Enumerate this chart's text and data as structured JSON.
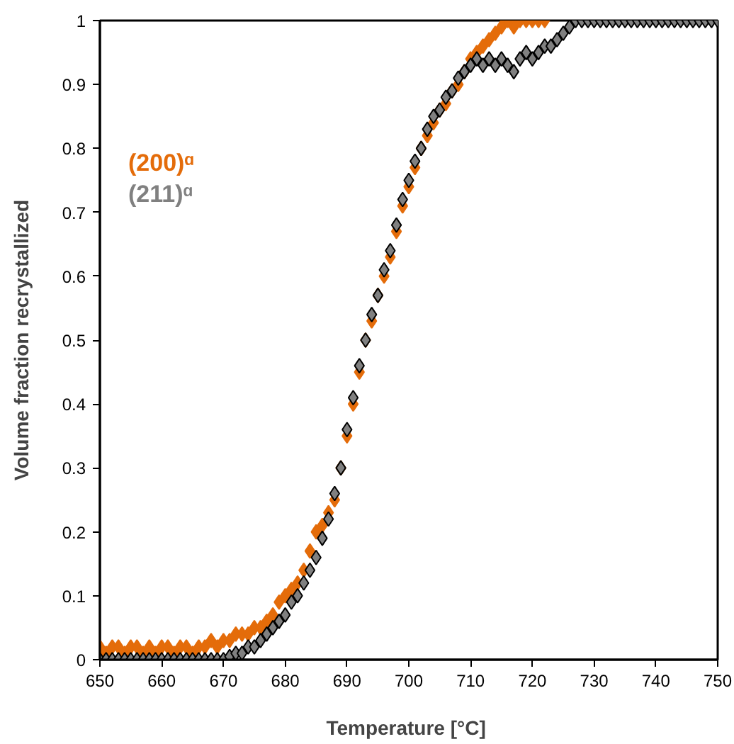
{
  "chart_data": {
    "type": "scatter",
    "xlabel": "Temperature  [°C]",
    "ylabel": "Volume fraction recrystallized",
    "xlim": [
      650,
      750
    ],
    "xticks": [
      650,
      660,
      670,
      680,
      690,
      700,
      710,
      720,
      730,
      740,
      750
    ],
    "ylim": [
      0,
      1
    ],
    "yticks": [
      0,
      0.1,
      0.2,
      0.3,
      0.4,
      0.5,
      0.6,
      0.7,
      0.8,
      0.9,
      1
    ],
    "grid": false,
    "legend": "top left",
    "marker": "diamond",
    "series": [
      {
        "name": "(200)ᵅ",
        "color": "#e46c0a",
        "x": [
          650,
          651,
          652,
          653,
          654,
          655,
          656,
          657,
          658,
          659,
          660,
          661,
          662,
          663,
          664,
          665,
          666,
          667,
          668,
          669,
          670,
          671,
          672,
          673,
          674,
          675,
          676,
          677,
          678,
          679,
          680,
          681,
          682,
          683,
          684,
          685,
          686,
          687,
          688,
          689,
          690,
          691,
          692,
          693,
          694,
          695,
          696,
          697,
          698,
          699,
          700,
          701,
          702,
          703,
          704,
          705,
          706,
          707,
          708,
          709,
          710,
          711,
          712,
          713,
          714,
          715,
          716,
          717,
          718,
          719,
          720,
          721,
          722
        ],
        "values": [
          0.02,
          0.01,
          0.02,
          0.02,
          0.01,
          0.02,
          0.02,
          0.01,
          0.02,
          0.01,
          0.02,
          0.02,
          0.01,
          0.02,
          0.02,
          0.01,
          0.02,
          0.02,
          0.03,
          0.02,
          0.03,
          0.03,
          0.04,
          0.04,
          0.04,
          0.05,
          0.05,
          0.06,
          0.07,
          0.09,
          0.1,
          0.11,
          0.12,
          0.14,
          0.17,
          0.2,
          0.21,
          0.23,
          0.25,
          0.3,
          0.35,
          0.4,
          0.45,
          0.5,
          0.53,
          0.57,
          0.6,
          0.63,
          0.67,
          0.71,
          0.74,
          0.77,
          0.8,
          0.82,
          0.84,
          0.86,
          0.87,
          0.89,
          0.9,
          0.92,
          0.94,
          0.95,
          0.96,
          0.97,
          0.98,
          0.99,
          1,
          0.99,
          1,
          1,
          1,
          1,
          1
        ]
      },
      {
        "name": "(211)ᵅ",
        "color": "#808080",
        "x": [
          650,
          651,
          652,
          653,
          654,
          655,
          656,
          657,
          658,
          659,
          660,
          661,
          662,
          663,
          664,
          665,
          666,
          667,
          668,
          669,
          670,
          671,
          672,
          673,
          674,
          675,
          676,
          677,
          678,
          679,
          680,
          681,
          682,
          683,
          684,
          685,
          686,
          687,
          688,
          689,
          690,
          691,
          692,
          693,
          694,
          695,
          696,
          697,
          698,
          699,
          700,
          701,
          702,
          703,
          704,
          705,
          706,
          707,
          708,
          709,
          710,
          711,
          712,
          713,
          714,
          715,
          716,
          717,
          718,
          719,
          720,
          721,
          722,
          723,
          724,
          725,
          726,
          727,
          728,
          729,
          730,
          731,
          732,
          733,
          734,
          735,
          736,
          737,
          738,
          739,
          740,
          741,
          742,
          743,
          744,
          745,
          746,
          747,
          748,
          749,
          750
        ],
        "values": [
          0,
          0,
          0,
          0,
          0,
          0,
          0,
          0,
          0,
          0,
          0,
          0,
          0,
          0,
          0,
          0,
          0,
          0,
          0,
          0,
          0,
          0.005,
          0.01,
          0.01,
          0.02,
          0.02,
          0.03,
          0.04,
          0.05,
          0.06,
          0.07,
          0.09,
          0.1,
          0.12,
          0.14,
          0.16,
          0.19,
          0.22,
          0.26,
          0.3,
          0.36,
          0.41,
          0.46,
          0.5,
          0.54,
          0.57,
          0.61,
          0.64,
          0.68,
          0.72,
          0.75,
          0.78,
          0.8,
          0.83,
          0.85,
          0.86,
          0.88,
          0.89,
          0.91,
          0.92,
          0.93,
          0.94,
          0.93,
          0.94,
          0.93,
          0.94,
          0.93,
          0.92,
          0.94,
          0.95,
          0.94,
          0.95,
          0.96,
          0.96,
          0.97,
          0.98,
          0.99,
          1,
          1,
          1,
          1,
          1,
          1,
          1,
          1,
          1,
          1,
          1,
          1,
          1,
          1,
          1,
          1,
          1,
          1,
          1,
          1,
          1,
          1,
          1,
          1
        ]
      }
    ]
  }
}
